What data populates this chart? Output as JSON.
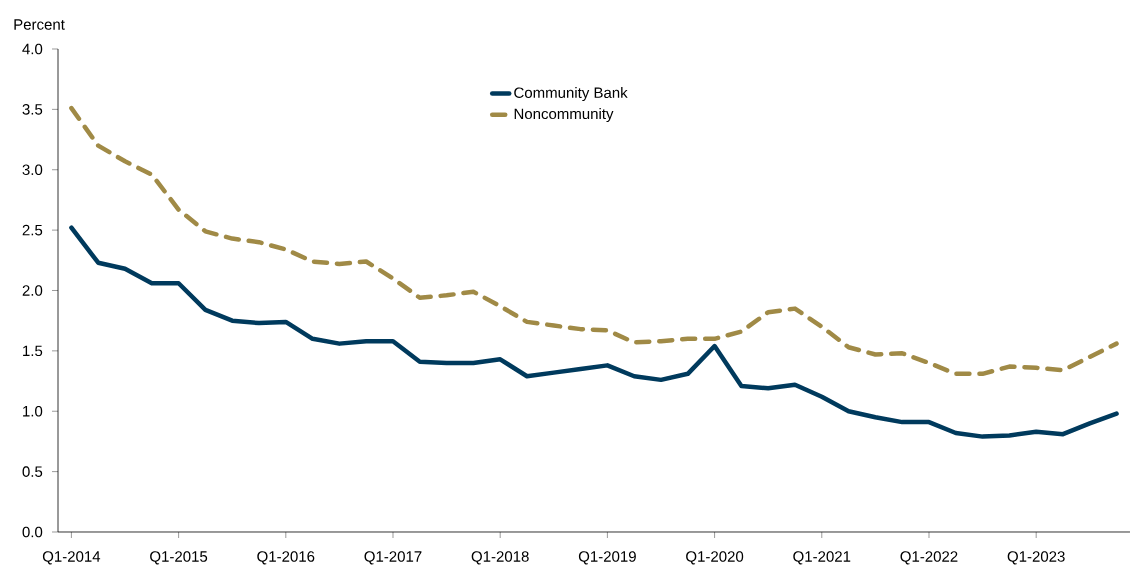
{
  "chart_data": {
    "type": "line",
    "ylabel": "Percent",
    "categories": [
      "Q1-2014",
      null,
      null,
      null,
      "Q1-2015",
      null,
      null,
      null,
      "Q1-2016",
      null,
      null,
      null,
      "Q1-2017",
      null,
      null,
      null,
      "Q1-2018",
      null,
      null,
      null,
      "Q1-2019",
      null,
      null,
      null,
      "Q1-2020",
      null,
      null,
      null,
      "Q1-2021",
      null,
      null,
      null,
      "Q1-2022",
      null,
      null,
      null,
      "Q1-2023",
      null,
      null,
      null
    ],
    "series": [
      {
        "name": "Community Bank",
        "color": "#003a5d",
        "line_style": "solid",
        "values": [
          2.52,
          2.23,
          2.18,
          2.06,
          2.06,
          1.84,
          1.75,
          1.73,
          1.74,
          1.6,
          1.56,
          1.58,
          1.58,
          1.41,
          1.4,
          1.4,
          1.43,
          1.29,
          1.32,
          1.35,
          1.38,
          1.29,
          1.26,
          1.31,
          1.54,
          1.21,
          1.19,
          1.22,
          1.12,
          1.0,
          0.95,
          0.91,
          0.91,
          0.82,
          0.79,
          0.8,
          0.83,
          0.81,
          0.9,
          0.98
        ]
      },
      {
        "name": "Noncommunity",
        "color": "#a08a46",
        "line_style": "dashed",
        "values": [
          3.51,
          3.2,
          3.07,
          2.96,
          2.67,
          2.49,
          2.43,
          2.4,
          2.34,
          2.24,
          2.22,
          2.24,
          2.1,
          1.94,
          1.96,
          1.99,
          1.87,
          1.74,
          1.71,
          1.68,
          1.67,
          1.57,
          1.58,
          1.6,
          1.6,
          1.66,
          1.82,
          1.85,
          1.7,
          1.53,
          1.47,
          1.48,
          1.4,
          1.31,
          1.31,
          1.37,
          1.36,
          1.34,
          1.45,
          1.56
        ]
      }
    ],
    "ylim": [
      0,
      4
    ],
    "yticks": [
      {
        "value": 0,
        "label": "0.0"
      },
      {
        "value": 0.5,
        "label": "0.5"
      },
      {
        "value": 1,
        "label": "1.0"
      },
      {
        "value": 1.5,
        "label": "1.5"
      },
      {
        "value": 2,
        "label": "2.0"
      },
      {
        "value": 2.5,
        "label": "2.5"
      },
      {
        "value": 3,
        "label": "3.0"
      },
      {
        "value": 3.5,
        "label": "3.5"
      },
      {
        "value": 4,
        "label": "4.0"
      }
    ],
    "legend": "top",
    "grid": false,
    "marker": "none"
  }
}
